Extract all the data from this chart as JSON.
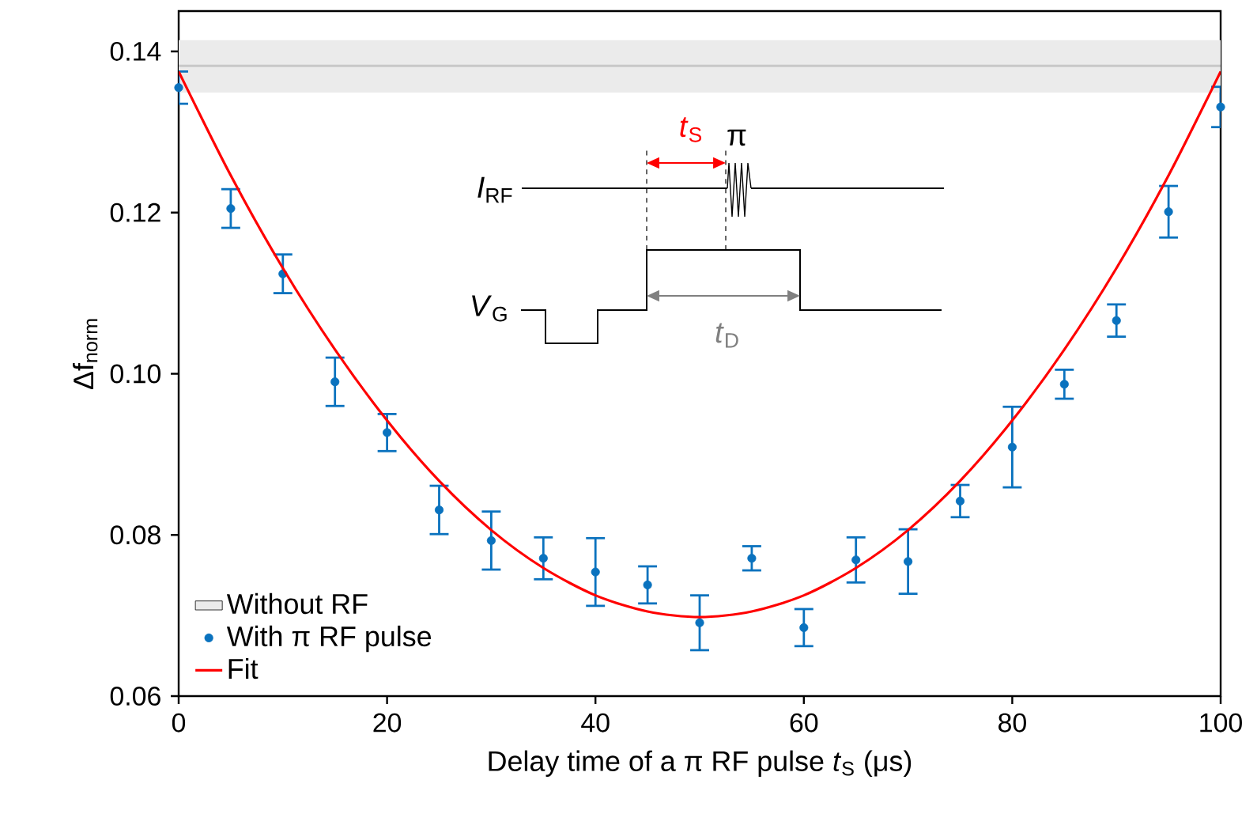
{
  "chart_data": {
    "type": "scatter",
    "xlabel": "Delay time of a π RF pulse *t*$_{S}$ (μs)",
    "ylabel": "Δf$_{norm}$",
    "xlim": [
      0,
      100
    ],
    "ylim": [
      0.06,
      0.145
    ],
    "xticks": [
      0,
      20,
      40,
      60,
      80,
      100
    ],
    "yticks": [
      0.06,
      0.08,
      {
        "value": 0.1,
        "label": "0.10"
      },
      0.12,
      0.14
    ],
    "x": [
      0,
      5,
      10,
      15,
      20,
      25,
      30,
      35,
      40,
      45,
      50,
      55,
      60,
      65,
      70,
      75,
      80,
      85,
      90,
      95,
      100
    ],
    "series": [
      {
        "name": "With π RF pulse",
        "color": "#0a72be",
        "marker": "circle",
        "values": [
          0.1355,
          0.1205,
          0.1124,
          0.099,
          0.0927,
          0.0831,
          0.0793,
          0.0771,
          0.0754,
          0.0738,
          0.0691,
          0.0771,
          0.0685,
          0.0769,
          0.0767,
          0.0842,
          0.0909,
          0.0987,
          0.1066,
          0.1201,
          0.1331
        ],
        "errors": [
          0.002,
          0.0024,
          0.0024,
          0.003,
          0.0023,
          0.003,
          0.0036,
          0.0026,
          0.0042,
          0.0023,
          0.0034,
          0.0015,
          0.0023,
          0.0028,
          0.004,
          0.002,
          0.005,
          0.0018,
          0.002,
          0.0032,
          0.0025
        ]
      },
      {
        "name": "Fit",
        "type": "line",
        "color": "#ff0000",
        "marker": "none",
        "line_style": "solid",
        "values": [
          0.1375,
          0.1246,
          0.1131,
          0.103,
          0.0942,
          0.0867,
          0.0806,
          0.0759,
          0.0725,
          0.0705,
          0.0698,
          0.0705,
          0.0725,
          0.0759,
          0.0806,
          0.0867,
          0.0942,
          0.103,
          0.1131,
          0.1246,
          0.1375
        ]
      }
    ],
    "bands": [
      {
        "axis": "y",
        "from": 0.1349,
        "to": 0.1414,
        "label": "Without RF",
        "color": "#ebebeb"
      }
    ],
    "ref_lines": [
      {
        "axis": "y",
        "value": 0.1382,
        "color": "#c8c8c8"
      }
    ],
    "annotations": [
      "*I*$_{RF}$",
      "*V*$_{G}$",
      "*t*$_{S}$",
      "*t*$_{D}$",
      "π"
    ],
    "grid": false,
    "legend": "bottom left"
  }
}
